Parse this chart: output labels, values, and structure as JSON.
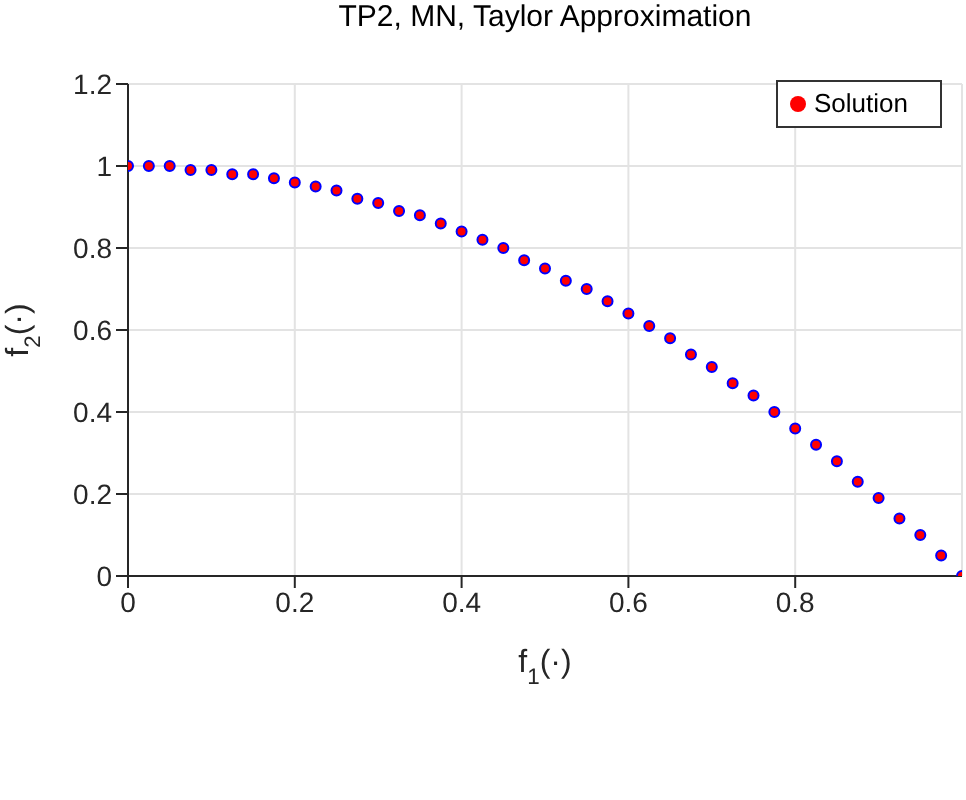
{
  "chart_data": {
    "type": "scatter",
    "title": "TP2, MN, Taylor Approximation",
    "xlabel": "f$_{1}$(·)",
    "ylabel": "f$_{2}$(·)",
    "xlim": [
      0,
      1
    ],
    "xticks": [
      0,
      0.2,
      0.4,
      0.6,
      0.8
    ],
    "ylim": [
      0,
      1.2
    ],
    "yticks": [
      0,
      0.2,
      0.4,
      0.6,
      0.8,
      1,
      1.2
    ],
    "grid": true,
    "legend": "top right",
    "marker": "circle",
    "series": [
      {
        "name": "Solution",
        "color": "#ff0000",
        "x": [
          0,
          0.025,
          0.05,
          0.075,
          0.1,
          0.125,
          0.15,
          0.175,
          0.2,
          0.225,
          0.25,
          0.275,
          0.3,
          0.325,
          0.35,
          0.375,
          0.4,
          0.425,
          0.45,
          0.475,
          0.5,
          0.525,
          0.55,
          0.575,
          0.6,
          0.625,
          0.65,
          0.675,
          0.7,
          0.725,
          0.75,
          0.775,
          0.8,
          0.825,
          0.85,
          0.875,
          0.9,
          0.925,
          0.95,
          0.975,
          1
        ],
        "values": [
          1,
          1,
          1,
          0.99,
          0.99,
          0.98,
          0.98,
          0.97,
          0.96,
          0.95,
          0.94,
          0.92,
          0.91,
          0.89,
          0.88,
          0.86,
          0.84,
          0.82,
          0.8,
          0.77,
          0.75,
          0.72,
          0.7,
          0.67,
          0.64,
          0.61,
          0.58,
          0.54,
          0.51,
          0.47,
          0.44,
          0.4,
          0.36,
          0.32,
          0.28,
          0.23,
          0.19,
          0.14,
          0.1,
          0.05,
          0
        ]
      }
    ]
  }
}
